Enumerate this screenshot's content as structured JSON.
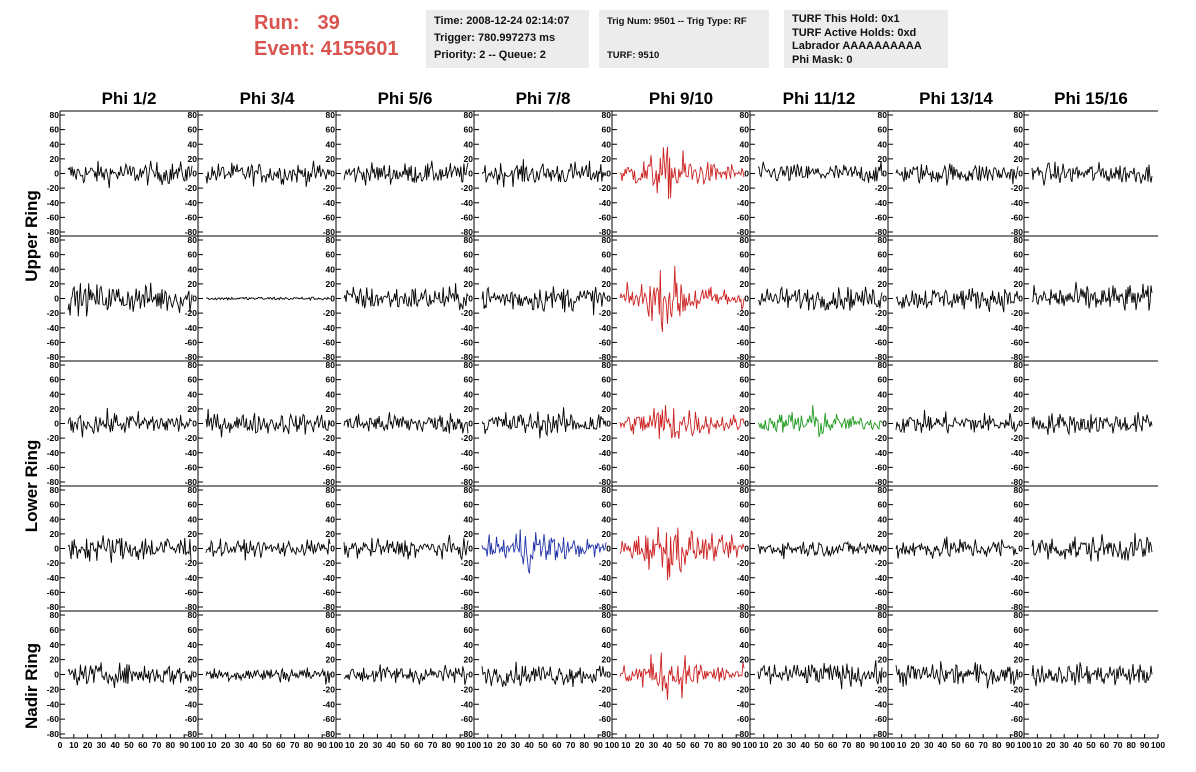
{
  "header": {
    "run_label": "Run:",
    "run_value": "39",
    "event_label": "Event:",
    "event_value": "4155601",
    "run_color": "#d9534f"
  },
  "info_panels": [
    {
      "lines": [
        "Time: 2008-12-24 02:14:07",
        "Trigger: 780.997273 ms",
        "Priority: 2 -- Queue: 2"
      ]
    },
    {
      "lines": [
        "Trig Num: 9501 -- Trig Type: RF",
        "",
        "TURF: 9510"
      ]
    },
    {
      "lines": [
        "TURF This Hold: 0x1",
        "TURF Active Holds: 0xd",
        "Labrador AAAAAAAAAA",
        "Phi Mask: 0"
      ]
    }
  ],
  "chart_data": {
    "type": "line",
    "columns": [
      "Phi 1/2",
      "Phi 3/4",
      "Phi 5/6",
      "Phi 7/8",
      "Phi 9/10",
      "Phi 11/12",
      "Phi 13/14",
      "Phi 15/16"
    ],
    "ring_labels": [
      "Upper Ring",
      "Lower Ring",
      "Nadir Ring"
    ],
    "y_ticks": [
      80,
      60,
      40,
      20,
      0,
      -20,
      -40,
      -60,
      -80
    ],
    "x_ticks": [
      "0",
      "10",
      "20",
      "30",
      "40",
      "50",
      "60",
      "70",
      "80",
      "90",
      "100"
    ],
    "ylim": [
      -80,
      80
    ],
    "xlim": [
      0,
      100
    ],
    "grid": false,
    "colors": {
      "black": "#000000",
      "red": "#cc2222",
      "green": "#1f9a1f",
      "blue": "#2233aa"
    },
    "rows": [
      {
        "colors": [
          "black",
          "black",
          "black",
          "black",
          "red",
          "black",
          "black",
          "black"
        ],
        "amplitude": [
          14,
          13,
          13,
          14,
          22,
          12,
          13,
          13
        ]
      },
      {
        "colors": [
          "black",
          "black",
          "black",
          "black",
          "red",
          "black",
          "black",
          "black"
        ],
        "amplitude": [
          18,
          2,
          15,
          16,
          24,
          14,
          14,
          17
        ]
      },
      {
        "colors": [
          "black",
          "black",
          "black",
          "black",
          "red",
          "green",
          "black",
          "black"
        ],
        "amplitude": [
          14,
          13,
          13,
          15,
          20,
          15,
          13,
          13
        ]
      },
      {
        "colors": [
          "black",
          "black",
          "black",
          "blue",
          "red",
          "black",
          "black",
          "black"
        ],
        "amplitude": [
          17,
          10,
          12,
          20,
          24,
          10,
          13,
          16
        ]
      },
      {
        "colors": [
          "black",
          "black",
          "black",
          "black",
          "red",
          "black",
          "black",
          "black"
        ],
        "amplitude": [
          13,
          9,
          11,
          13,
          20,
          14,
          14,
          13
        ]
      }
    ]
  }
}
